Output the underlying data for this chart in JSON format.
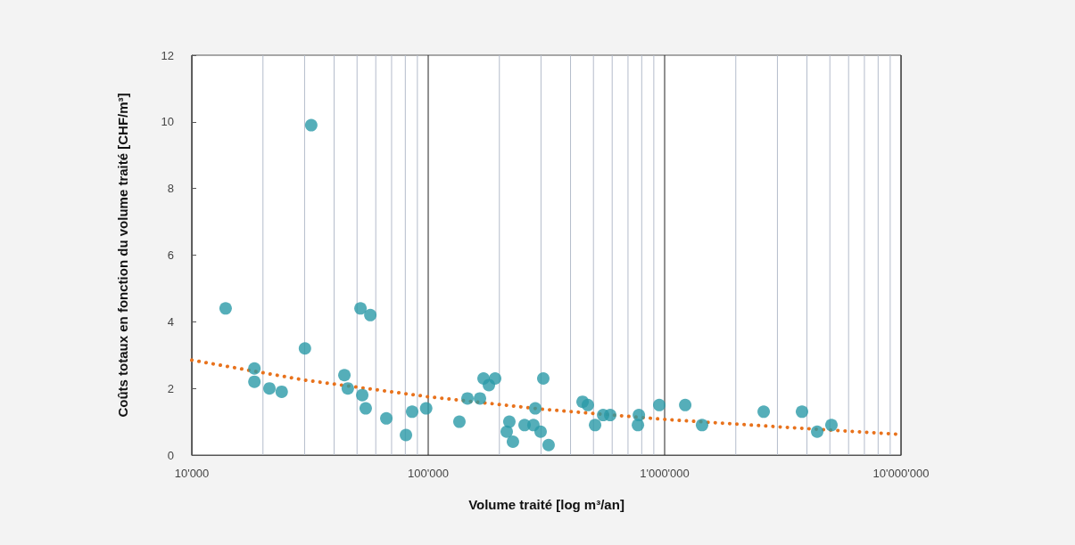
{
  "chart_data": {
    "type": "scatter",
    "xlabel": "Volume traité [log m³/an]",
    "ylabel": "Coûts totaux en fonction du volume traité [CHF/m³]",
    "log": "x",
    "grid": "x",
    "marker": "circle",
    "xlim": [
      10000,
      10000000
    ],
    "xticks": [
      {
        "value": 10000,
        "label": "10'000"
      },
      {
        "value": 20000,
        "label": null
      },
      {
        "value": 30000,
        "label": null
      },
      {
        "value": 40000,
        "label": null
      },
      {
        "value": 50000,
        "label": null
      },
      {
        "value": 60000,
        "label": null
      },
      {
        "value": 70000,
        "label": null
      },
      {
        "value": 80000,
        "label": null
      },
      {
        "value": 90000,
        "label": null
      },
      {
        "value": 100000,
        "label": "100'000"
      },
      {
        "value": 200000,
        "label": null
      },
      {
        "value": 300000,
        "label": null
      },
      {
        "value": 400000,
        "label": null
      },
      {
        "value": 500000,
        "label": null
      },
      {
        "value": 600000,
        "label": null
      },
      {
        "value": 700000,
        "label": null
      },
      {
        "value": 800000,
        "label": null
      },
      {
        "value": 900000,
        "label": null
      },
      {
        "value": 1000000,
        "label": "1'000'000"
      },
      {
        "value": 2000000,
        "label": null
      },
      {
        "value": 3000000,
        "label": null
      },
      {
        "value": 4000000,
        "label": null
      },
      {
        "value": 5000000,
        "label": null
      },
      {
        "value": 6000000,
        "label": null
      },
      {
        "value": 7000000,
        "label": null
      },
      {
        "value": 8000000,
        "label": null
      },
      {
        "value": 9000000,
        "label": null
      },
      {
        "value": 10000000,
        "label": "10'000'000"
      }
    ],
    "ylim": [
      0,
      12
    ],
    "yticks": [
      0,
      2,
      4,
      6,
      8,
      10,
      12
    ],
    "series": [
      {
        "color": "#2b9aa8",
        "x": [
          13900,
          18400,
          18400,
          21300,
          24000,
          30100,
          32000,
          44200,
          45700,
          51700,
          52600,
          54400,
          56900,
          66500,
          80500,
          85500,
          98000,
          135500,
          146600,
          165500,
          171400,
          180600,
          191900,
          214800,
          220400,
          228200,
          255600,
          278700,
          283700,
          298800,
          306700,
          323000,
          449700,
          473300,
          508000,
          549400,
          588500,
          771000,
          778000,
          949000,
          1222000,
          1440000,
          2624000,
          3811000,
          4419000,
          5077000
        ],
        "values": [
          4.4,
          2.6,
          2.2,
          2.0,
          1.9,
          3.2,
          9.9,
          2.4,
          2.0,
          4.4,
          1.8,
          1.4,
          4.2,
          1.1,
          0.6,
          1.3,
          1.4,
          1.0,
          1.7,
          1.7,
          2.3,
          2.1,
          2.3,
          0.7,
          1.0,
          0.4,
          0.9,
          0.9,
          1.4,
          0.7,
          2.3,
          0.3,
          1.6,
          1.5,
          0.9,
          1.2,
          1.2,
          0.9,
          1.2,
          1.5,
          1.5,
          0.9,
          1.3,
          1.3,
          0.7,
          0.9
        ]
      },
      {
        "type": "line",
        "color": "#e8721c",
        "line_style": "dotted",
        "marker": "none",
        "x": [
          10000,
          30000,
          100000,
          300000,
          1000000,
          3000000,
          10000000
        ],
        "values": [
          2.85,
          2.25,
          1.75,
          1.38,
          1.07,
          0.85,
          0.62
        ]
      }
    ]
  }
}
